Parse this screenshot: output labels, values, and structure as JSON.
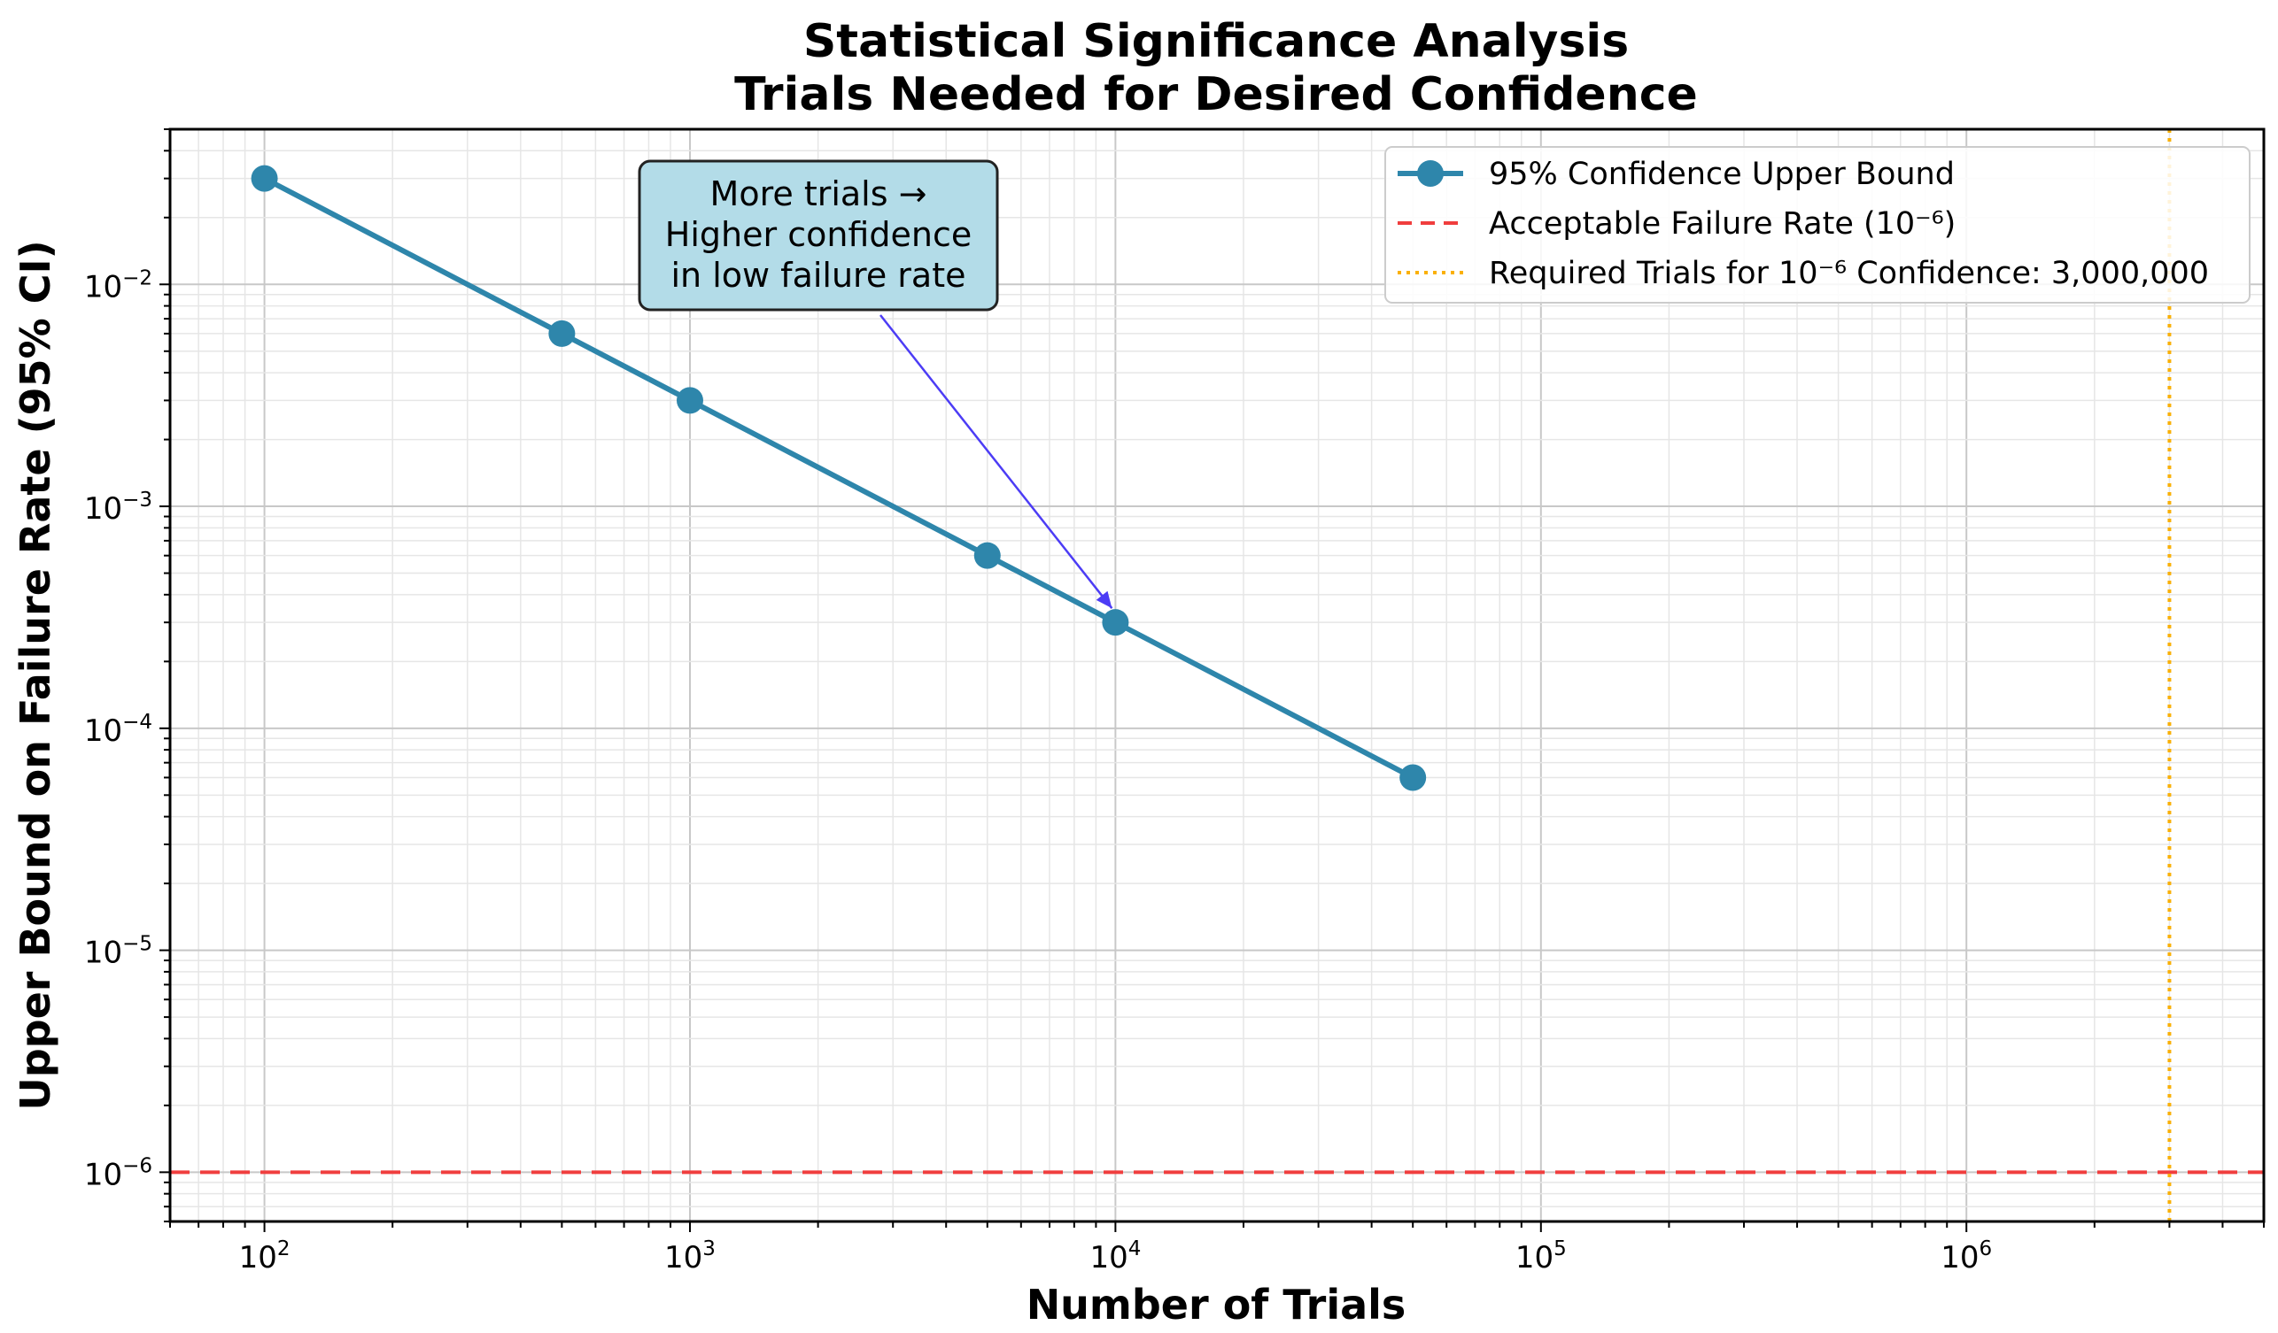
{
  "chart_data": {
    "type": "line",
    "title_lines": [
      "Statistical Significance Analysis",
      "Trials Needed for Desired Confidence"
    ],
    "xlabel": "Number of Trials",
    "ylabel": "Upper Bound on Failure Rate (95% CI)",
    "xscale": "log",
    "yscale": "log",
    "xlim": [
      60,
      5000000
    ],
    "ylim": [
      6e-07,
      0.05
    ],
    "grid": true,
    "x_ticks": [
      {
        "value": 100,
        "base": "10",
        "exp": "2"
      },
      {
        "value": 1000,
        "base": "10",
        "exp": "3"
      },
      {
        "value": 10000,
        "base": "10",
        "exp": "4"
      },
      {
        "value": 100000,
        "base": "10",
        "exp": "5"
      },
      {
        "value": 1000000,
        "base": "10",
        "exp": "6"
      }
    ],
    "y_ticks": [
      {
        "value": 0.01,
        "base": "10",
        "exp": "−2"
      },
      {
        "value": 0.001,
        "base": "10",
        "exp": "−3"
      },
      {
        "value": 0.0001,
        "base": "10",
        "exp": "−4"
      },
      {
        "value": 1e-05,
        "base": "10",
        "exp": "−5"
      },
      {
        "value": 1e-06,
        "base": "10",
        "exp": "−6"
      }
    ],
    "series": [
      {
        "name": "95% Confidence Upper Bound",
        "color": "#2e86ab",
        "x": [
          100,
          500,
          1000,
          5000,
          10000,
          50000
        ],
        "y": [
          0.03,
          0.006,
          0.003,
          0.0006,
          0.0003,
          6e-05
        ]
      }
    ],
    "reference_lines": [
      {
        "orientation": "horizontal",
        "value": 1e-06,
        "name": "Acceptable Failure Rate (10⁻⁶)",
        "color": "#f03e3e",
        "style": "dashed"
      },
      {
        "orientation": "vertical",
        "value": 3000000,
        "name": "Required Trials for 10⁻⁶ Confidence: 3,000,000",
        "color": "#fab005",
        "style": "dotted"
      }
    ],
    "legend": {
      "position": "top-right"
    },
    "annotation": {
      "lines": [
        "More trials →",
        "Higher confidence",
        "in low failure rate"
      ],
      "arrow_target": {
        "x": 10000,
        "y": 0.0003
      },
      "box_color": "#b3dce8",
      "arrow_color": "#4c3cf5"
    }
  }
}
